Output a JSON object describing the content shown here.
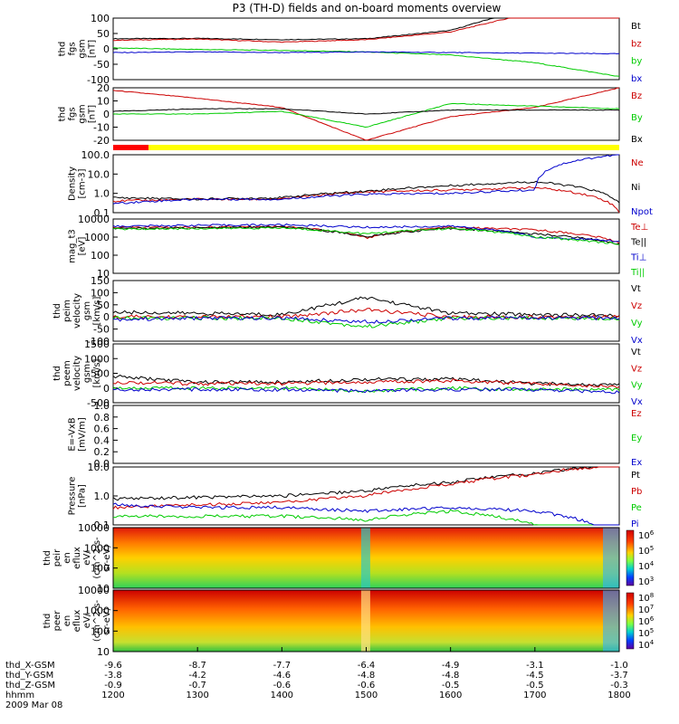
{
  "chart_data": {
    "type": "line",
    "title": "P3 (TH-D) fields and on-board moments overview",
    "x_ticks": [
      "1200",
      "1300",
      "1400",
      "1500",
      "1600",
      "1700",
      "1800"
    ],
    "ephemeris": [
      {
        "label": "thd_X-GSM",
        "values": [
          "-9.6",
          "-8.7",
          "-7.7",
          "-6.4",
          "-4.9",
          "-3.1",
          "-1.0"
        ]
      },
      {
        "label": "thd_Y-GSM",
        "values": [
          "-3.8",
          "-4.2",
          "-4.6",
          "-4.8",
          "-4.8",
          "-4.5",
          "-3.7"
        ]
      },
      {
        "label": "thd_Z-GSM",
        "values": [
          "-0.9",
          "-0.7",
          "-0.6",
          "-0.6",
          "-0.5",
          "-0.5",
          "-0.3"
        ]
      }
    ],
    "time_label": "hhmm",
    "date_label": "2009 Mar 08",
    "panels": [
      {
        "ylabel": [
          "thd",
          "fgs",
          "gsm",
          "[nT]"
        ],
        "ticks": [
          "100",
          "50",
          "0",
          "-50",
          "-100"
        ],
        "series": [
          {
            "name": "Bt",
            "color": "#000000",
            "values": [
              33,
              34,
              30,
              33,
              60,
              140,
              200
            ]
          },
          {
            "name": "bz",
            "color": "#cc0000",
            "values": [
              28,
              32,
              22,
              30,
              55,
              120,
              180
            ]
          },
          {
            "name": "by",
            "color": "#00cc00",
            "values": [
              3,
              -2,
              -5,
              -10,
              -20,
              -45,
              -90
            ]
          },
          {
            "name": "bx",
            "color": "#0000cc",
            "values": [
              -12,
              -10,
              -12,
              -10,
              -12,
              -14,
              -16
            ]
          }
        ]
      },
      {
        "ylabel": [
          "thd",
          "fgs",
          "gsm",
          "[nT]"
        ],
        "ticks": [
          "20",
          "10",
          "0",
          "-10",
          "-20"
        ],
        "series": [
          {
            "name": "Bz",
            "color": "#cc0000",
            "values": [
              18,
              12,
              5,
              -20,
              -2,
              5,
              20
            ]
          },
          {
            "name": "By",
            "color": "#00cc00",
            "values": [
              0,
              0,
              2,
              -10,
              8,
              6,
              4
            ]
          },
          {
            "name": "Bx",
            "color": "#000000",
            "values": [
              2,
              4,
              4,
              0,
              3,
              3,
              3
            ]
          }
        ]
      },
      {
        "ylabel": [
          "Density",
          "[cm-3]"
        ],
        "ticks": [
          "100.0",
          "10.0",
          "1.0",
          "0.1"
        ],
        "series": [
          {
            "name": "Ne",
            "color": "#cc0000",
            "values": [
              0.4,
              0.5,
              0.5,
              1.2,
              1.5,
              2.0,
              0.1
            ]
          },
          {
            "name": "Ni",
            "color": "#000000",
            "values": [
              0.6,
              0.5,
              0.6,
              1.3,
              2.5,
              4.0,
              0.3
            ]
          },
          {
            "name": "Npot",
            "color": "#0000cc",
            "values": [
              0.3,
              0.5,
              0.5,
              0.9,
              1.0,
              1.5,
              100
            ]
          }
        ]
      },
      {
        "ylabel": [
          "mag_t3",
          "[eV]"
        ],
        "ticks": [
          "10000",
          "1000",
          "100",
          "10"
        ],
        "series": [
          {
            "name": "Te⊥",
            "color": "#cc0000",
            "values": [
              3500,
              3500,
              4000,
              900,
              3500,
              2500,
              500
            ]
          },
          {
            "name": "Te||",
            "color": "#000000",
            "values": [
              3000,
              3200,
              3600,
              1000,
              3000,
              1500,
              400
            ]
          },
          {
            "name": "Ti⊥",
            "color": "#0000cc",
            "values": [
              4000,
              4500,
              4800,
              3500,
              4000,
              1000,
              600
            ]
          },
          {
            "name": "Ti||",
            "color": "#00cc00",
            "values": [
              2800,
              3000,
              3200,
              1500,
              3000,
              1000,
              400
            ]
          }
        ]
      },
      {
        "ylabel": [
          "thd",
          "peim",
          "velocity",
          "gsm",
          "[km/s]"
        ],
        "ticks": [
          "150",
          "100",
          "50",
          "0",
          "-50",
          "-100"
        ],
        "series": [
          {
            "name": "Vt",
            "color": "#000000",
            "values": [
              20,
              15,
              10,
              80,
              15,
              10,
              5
            ]
          },
          {
            "name": "Vz",
            "color": "#cc0000",
            "values": [
              0,
              0,
              0,
              30,
              0,
              0,
              0
            ]
          },
          {
            "name": "Vy",
            "color": "#00cc00",
            "values": [
              -5,
              -5,
              -5,
              -40,
              -5,
              -5,
              -5
            ]
          },
          {
            "name": "Vx",
            "color": "#0000cc",
            "values": [
              -10,
              -5,
              -5,
              -20,
              -5,
              -5,
              -5
            ]
          }
        ]
      },
      {
        "ylabel": [
          "thd",
          "peem",
          "velocity",
          "gsm",
          "[km/s]"
        ],
        "ticks": [
          "1500",
          "1000",
          "500",
          "0",
          "-500"
        ],
        "series": [
          {
            "name": "Vt",
            "color": "#000000",
            "values": [
              400,
              200,
              200,
              300,
              300,
              150,
              100
            ]
          },
          {
            "name": "Vz",
            "color": "#cc0000",
            "values": [
              200,
              150,
              150,
              200,
              250,
              150,
              50
            ]
          },
          {
            "name": "Vy",
            "color": "#00cc00",
            "values": [
              0,
              0,
              0,
              -100,
              0,
              -50,
              -50
            ]
          },
          {
            "name": "Vx",
            "color": "#0000cc",
            "values": [
              -50,
              -50,
              -50,
              -100,
              -50,
              -50,
              -150
            ]
          }
        ]
      },
      {
        "ylabel": [
          "E=-VxB",
          "[mV/m]"
        ],
        "ticks": [
          "1.0",
          "0.8",
          "0.6",
          "0.4",
          "0.2",
          "0.0"
        ],
        "series": [
          {
            "name": "Ez",
            "color": "#cc0000",
            "values": []
          },
          {
            "name": "Ey",
            "color": "#00cc00",
            "values": []
          },
          {
            "name": "Ex",
            "color": "#0000cc",
            "values": []
          }
        ]
      },
      {
        "ylabel": [
          "Pressure",
          "[nPa]"
        ],
        "ticks": [
          "10.0",
          "1.0",
          "0.1"
        ],
        "series": [
          {
            "name": "Pt",
            "color": "#000000",
            "values": [
              0.8,
              0.9,
              1.0,
              1.5,
              3.0,
              6.0,
              12
            ]
          },
          {
            "name": "Pb",
            "color": "#cc0000",
            "values": [
              0.4,
              0.5,
              0.6,
              1.0,
              2.5,
              5.5,
              12
            ]
          },
          {
            "name": "Pe",
            "color": "#00cc00",
            "values": [
              0.2,
              0.2,
              0.2,
              0.15,
              0.3,
              0.1,
              0.01
            ]
          },
          {
            "name": "Pi",
            "color": "#0000cc",
            "values": [
              0.5,
              0.4,
              0.4,
              0.3,
              0.4,
              0.3,
              0.02
            ]
          }
        ]
      },
      {
        "ylabel": [
          "thd",
          "peir",
          "en",
          "eflux",
          "eV/",
          "(cm^2-s-",
          "sr-eV)"
        ],
        "ticks": [
          "10000",
          "1000",
          "100",
          "10"
        ],
        "colorbar_ticks": [
          "10^6",
          "10^5",
          "10^4",
          "10^3"
        ]
      },
      {
        "ylabel": [
          "thd",
          "peer",
          "en",
          "eflux",
          "eV/",
          "(cm^2-s-",
          "sr-eV)"
        ],
        "ticks": [
          "10000",
          "1000",
          "100",
          "10"
        ],
        "colorbar_ticks": [
          "10^8",
          "10^7",
          "10^6",
          "10^5",
          "10^4"
        ]
      }
    ],
    "mode_bar": {
      "segments": [
        {
          "color": "#ff0000",
          "from": 0,
          "to": 0.07
        },
        {
          "color": "#ffff00",
          "from": 0.07,
          "to": 1
        }
      ]
    }
  }
}
